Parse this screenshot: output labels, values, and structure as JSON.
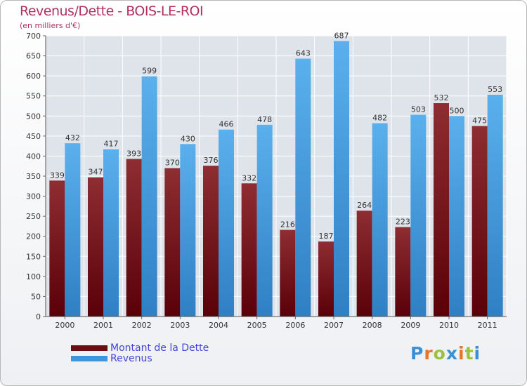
{
  "header": {
    "title": "Revenus/Dette - BOIS-LE-ROI",
    "subtitle": "(en milliers d'€)"
  },
  "chart_data": {
    "type": "bar",
    "title": "Revenus/Dette - BOIS-LE-ROI",
    "subtitle": "(en milliers d'€)",
    "categories": [
      "2000",
      "2001",
      "2002",
      "2003",
      "2004",
      "2005",
      "2006",
      "2007",
      "2008",
      "2009",
      "2010",
      "2011"
    ],
    "series": [
      {
        "name": "Montant de la Dette",
        "values": [
          339,
          347,
          393,
          370,
          376,
          332,
          216,
          187,
          264,
          223,
          532,
          475
        ],
        "color": "#7a1e22"
      },
      {
        "name": "Revenus",
        "values": [
          432,
          417,
          599,
          430,
          466,
          478,
          643,
          687,
          482,
          503,
          500,
          553
        ],
        "color": "#4a9fe0"
      }
    ],
    "ylim": [
      0,
      700
    ],
    "yticks": [
      0,
      50,
      100,
      150,
      200,
      250,
      300,
      350,
      400,
      450,
      500,
      550,
      600,
      650,
      700
    ],
    "grid": true,
    "legend_position": "bottom-left"
  },
  "legend": {
    "items": [
      {
        "label": "Montant de la Dette",
        "color": "#6b0e12"
      },
      {
        "label": "Revenus",
        "color": "#3d97e0"
      }
    ]
  },
  "logo": {
    "letters": [
      "P",
      "r",
      "o",
      "x",
      "i",
      "t",
      "i"
    ],
    "colors": [
      "#3b8fd6",
      "#e8742a",
      "#9bc23c",
      "#3b8fd6",
      "#e8742a",
      "#9bc23c",
      "#3b8fd6"
    ]
  }
}
